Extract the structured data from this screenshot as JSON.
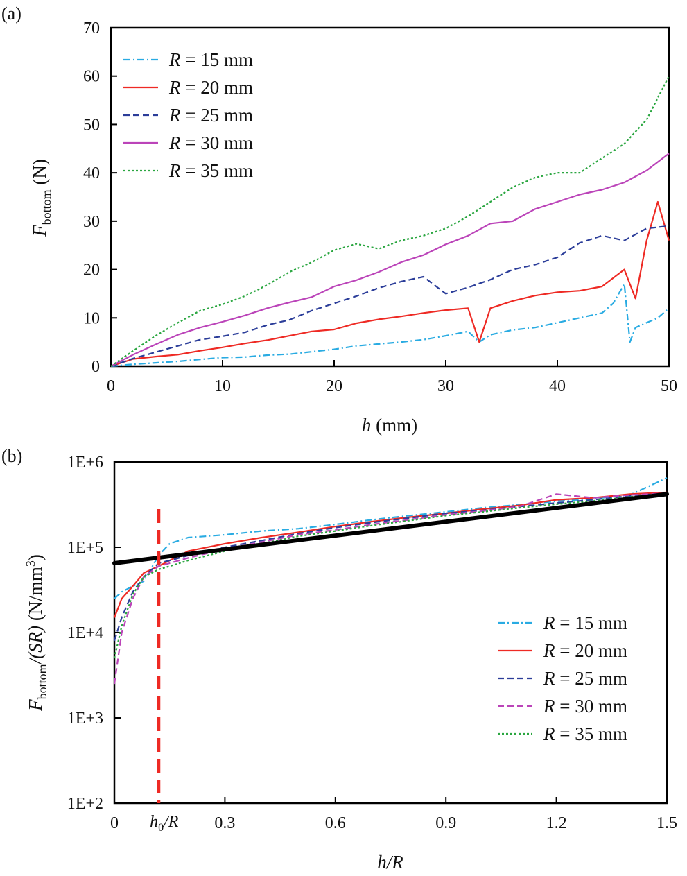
{
  "chart_data": [
    {
      "panel": "(a)",
      "type": "line",
      "xlabel": {
        "var": "h",
        "unit": " (mm)"
      },
      "ylabel": {
        "var": "F",
        "sub": "bottom",
        "unit": " (N)"
      },
      "xlim": [
        0,
        50
      ],
      "ylim": [
        0,
        70
      ],
      "xticks": [
        0,
        10,
        20,
        30,
        40,
        50
      ],
      "yticks": [
        0,
        10,
        20,
        30,
        40,
        50,
        60,
        70
      ],
      "grid": false,
      "legend": {
        "position": "top-left"
      },
      "series": [
        {
          "name": "R = 15 mm",
          "color": "#29abe2",
          "dash": "dashdot",
          "x": [
            0,
            2,
            4,
            6,
            8,
            10,
            12,
            14,
            16,
            18,
            20,
            22,
            24,
            26,
            28,
            30,
            32,
            33,
            34,
            36,
            38,
            40,
            42,
            44,
            45,
            46,
            46.5,
            47,
            48,
            49,
            50
          ],
          "y": [
            0,
            0.4,
            0.7,
            1.0,
            1.4,
            1.8,
            1.9,
            2.3,
            2.5,
            3.0,
            3.5,
            4.2,
            4.6,
            5.0,
            5.5,
            6.3,
            7.2,
            5.0,
            6.5,
            7.5,
            8.0,
            9.0,
            10.0,
            11.0,
            13.0,
            17.0,
            5.0,
            8.0,
            9.0,
            10.0,
            12.0
          ]
        },
        {
          "name": "R = 20 mm",
          "color": "#ee2a24",
          "dash": "solid",
          "x": [
            0,
            2,
            4,
            6,
            8,
            10,
            12,
            14,
            16,
            18,
            20,
            22,
            24,
            26,
            28,
            30,
            32,
            33,
            34,
            36,
            38,
            40,
            42,
            44,
            46,
            47,
            48,
            49,
            50
          ],
          "y": [
            0,
            1.5,
            2.0,
            2.4,
            3.2,
            3.9,
            4.7,
            5.4,
            6.3,
            7.2,
            7.6,
            8.9,
            9.7,
            10.3,
            11.0,
            11.6,
            12.0,
            5.0,
            12.0,
            13.5,
            14.6,
            15.3,
            15.6,
            16.5,
            20.0,
            14.0,
            26.0,
            34.0,
            26.0
          ]
        },
        {
          "name": "R = 25 mm",
          "color": "#2b3d99",
          "dash": "dashed",
          "x": [
            0,
            2,
            4,
            6,
            8,
            10,
            12,
            14,
            16,
            18,
            20,
            22,
            24,
            26,
            28,
            30,
            32,
            34,
            36,
            38,
            40,
            42,
            44,
            46,
            48,
            50
          ],
          "y": [
            0,
            1.6,
            2.9,
            4.2,
            5.5,
            6.2,
            7.0,
            8.5,
            9.6,
            11.5,
            13.0,
            14.5,
            16.2,
            17.5,
            18.5,
            15.0,
            16.3,
            17.9,
            20.0,
            21.0,
            22.5,
            25.5,
            27.0,
            26.0,
            28.5,
            29.0
          ]
        },
        {
          "name": "R = 30 mm",
          "color": "#bb44b9",
          "dash": "solid",
          "x": [
            0,
            2,
            4,
            6,
            8,
            10,
            12,
            14,
            16,
            18,
            20,
            22,
            24,
            26,
            28,
            30,
            32,
            34,
            36,
            38,
            40,
            42,
            44,
            46,
            48,
            50
          ],
          "y": [
            0,
            2.4,
            4.5,
            6.5,
            8.0,
            9.2,
            10.5,
            12.0,
            13.2,
            14.3,
            16.5,
            17.8,
            19.5,
            21.5,
            23.0,
            25.2,
            27.0,
            29.5,
            30.0,
            32.5,
            34.0,
            35.5,
            36.5,
            38.0,
            40.5,
            44.0
          ]
        },
        {
          "name": "R = 35 mm",
          "color": "#2aa640",
          "dash": "dotted",
          "x": [
            0,
            2,
            4,
            6,
            8,
            10,
            12,
            14,
            16,
            18,
            20,
            22,
            24,
            26,
            28,
            30,
            32,
            34,
            36,
            38,
            40,
            42,
            44,
            46,
            48,
            50
          ],
          "y": [
            0,
            3.2,
            6.3,
            9.0,
            11.5,
            12.8,
            14.5,
            16.8,
            19.5,
            21.5,
            24.0,
            25.3,
            24.3,
            26.0,
            27.0,
            28.5,
            31.0,
            34.0,
            37.0,
            39.0,
            40.0,
            40.0,
            43.0,
            46.0,
            51.0,
            60.0
          ]
        }
      ]
    },
    {
      "panel": "(b)",
      "type": "line",
      "xlabel": {
        "var": "h/R",
        "unit": ""
      },
      "ylabel": {
        "var": "F",
        "sub": "bottom",
        "rest": "/(SR)",
        "unit": " (N/mm",
        "sup": "3",
        "close": ")"
      },
      "xlim": [
        0,
        1.5
      ],
      "ylim": [
        100,
        1000000
      ],
      "yscale": "log",
      "xticks": [
        0,
        0.3,
        0.6,
        0.9,
        1.2,
        1.5
      ],
      "xticklabels": [
        "0",
        "0.3",
        "0.6",
        "0.9",
        "1.2",
        "1.5"
      ],
      "yticks": [
        100,
        1000,
        10000,
        100000,
        1000000
      ],
      "yticklabels": [
        "1E+2",
        "1E+3",
        "1E+4",
        "1E+5",
        "1E+6"
      ],
      "grid": false,
      "legend": {
        "position": "bottom-right"
      },
      "annotation": {
        "label_var": "h",
        "label_sub": "0",
        "label_rest": "/R",
        "x": 0.12,
        "color": "#ee2a24"
      },
      "fit_line": {
        "x": [
          0,
          1.5
        ],
        "y": [
          65000,
          420000
        ],
        "color": "#000000"
      },
      "series": [
        {
          "name": "R = 15 mm",
          "color": "#29abe2",
          "dash": "dashdot",
          "x": [
            0,
            0.02,
            0.05,
            0.08,
            0.12,
            0.15,
            0.2,
            0.3,
            0.4,
            0.5,
            0.6,
            0.7,
            0.8,
            0.9,
            1.0,
            1.1,
            1.2,
            1.3,
            1.4,
            1.5
          ],
          "y": [
            25000,
            30000,
            35000,
            40000,
            80000,
            110000,
            130000,
            140000,
            155000,
            165000,
            185000,
            210000,
            235000,
            260000,
            290000,
            315000,
            345000,
            370000,
            410000,
            650000
          ]
        },
        {
          "name": "R = 20 mm",
          "color": "#ee2a24",
          "dash": "solid",
          "x": [
            0,
            0.02,
            0.05,
            0.08,
            0.12,
            0.15,
            0.2,
            0.3,
            0.4,
            0.5,
            0.6,
            0.7,
            0.8,
            0.9,
            1.0,
            1.1,
            1.2,
            1.3,
            1.4,
            1.5
          ],
          "y": [
            15000,
            25000,
            35000,
            50000,
            60000,
            70000,
            90000,
            110000,
            130000,
            150000,
            175000,
            200000,
            225000,
            250000,
            280000,
            310000,
            360000,
            380000,
            420000,
            440000
          ]
        },
        {
          "name": "R = 25 mm",
          "color": "#2b3d99",
          "dash": "dashed",
          "x": [
            0,
            0.02,
            0.05,
            0.08,
            0.12,
            0.15,
            0.2,
            0.3,
            0.4,
            0.5,
            0.6,
            0.7,
            0.8,
            0.9,
            1.0,
            1.1,
            1.2,
            1.3,
            1.4,
            1.5
          ],
          "y": [
            8000,
            15000,
            30000,
            45000,
            65000,
            70000,
            80000,
            100000,
            120000,
            145000,
            170000,
            195000,
            220000,
            250000,
            270000,
            300000,
            330000,
            360000,
            400000,
            430000
          ]
        },
        {
          "name": "R = 30 mm",
          "color": "#bb44b9",
          "dash": "dashed",
          "x": [
            0,
            0.02,
            0.05,
            0.08,
            0.12,
            0.15,
            0.2,
            0.3,
            0.4,
            0.5,
            0.6,
            0.7,
            0.8,
            0.9,
            1.0,
            1.1,
            1.2,
            1.3,
            1.4,
            1.5
          ],
          "y": [
            2500,
            10000,
            25000,
            45000,
            60000,
            65000,
            75000,
            95000,
            115000,
            140000,
            160000,
            185000,
            210000,
            240000,
            265000,
            300000,
            420000,
            380000,
            410000,
            430000
          ]
        },
        {
          "name": "R = 35 mm",
          "color": "#2aa640",
          "dash": "dotted",
          "x": [
            0,
            0.02,
            0.05,
            0.08,
            0.12,
            0.15,
            0.2,
            0.3,
            0.4,
            0.5,
            0.6,
            0.7,
            0.8,
            0.9,
            1.0,
            1.1,
            1.2,
            1.3,
            1.4,
            1.5
          ],
          "y": [
            5000,
            12000,
            28000,
            45000,
            55000,
            60000,
            70000,
            90000,
            110000,
            135000,
            155000,
            180000,
            205000,
            235000,
            260000,
            290000,
            320000,
            350000,
            390000,
            420000
          ]
        }
      ]
    }
  ]
}
